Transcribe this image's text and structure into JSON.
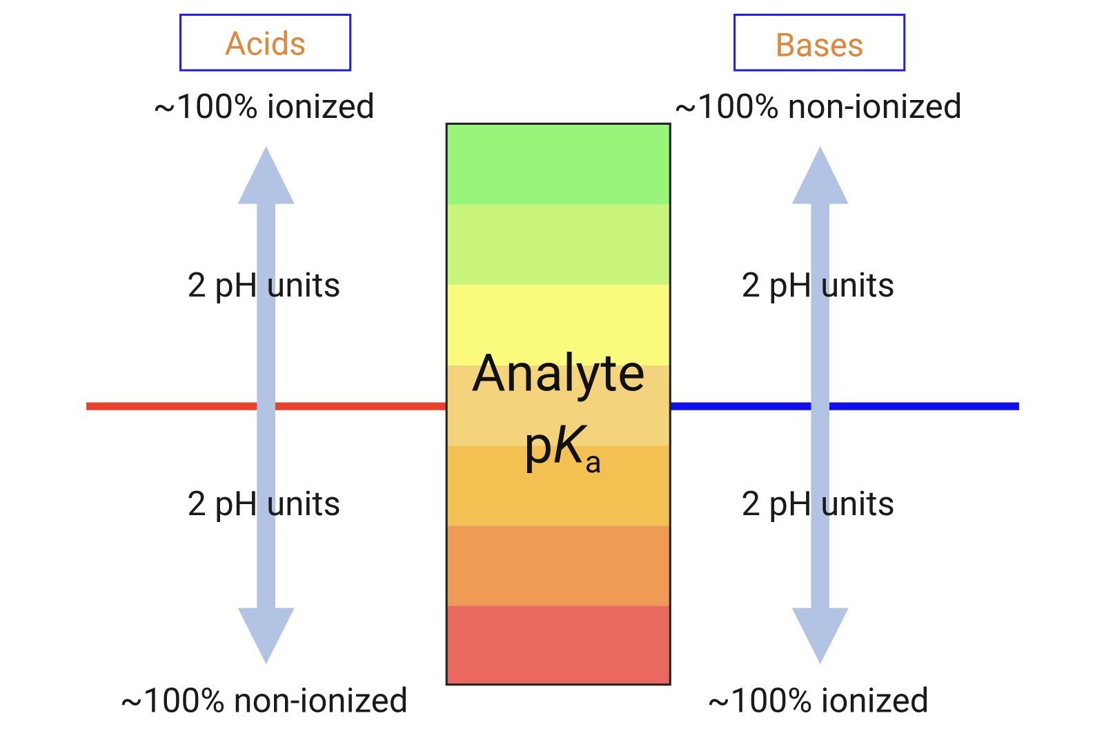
{
  "left": {
    "title": "Acids",
    "top": "~100% ionized",
    "upper": "2 pH units",
    "lower": "2 pH units",
    "bottom": "~100% non-ionized"
  },
  "right": {
    "title": "Bases",
    "top": "~100% non-ionized",
    "upper": "2 pH units",
    "lower": "2 pH units",
    "bottom": "~100% ionized"
  },
  "center": {
    "line1": "Analyte",
    "p": "p",
    "K": "K",
    "a": "a"
  }
}
